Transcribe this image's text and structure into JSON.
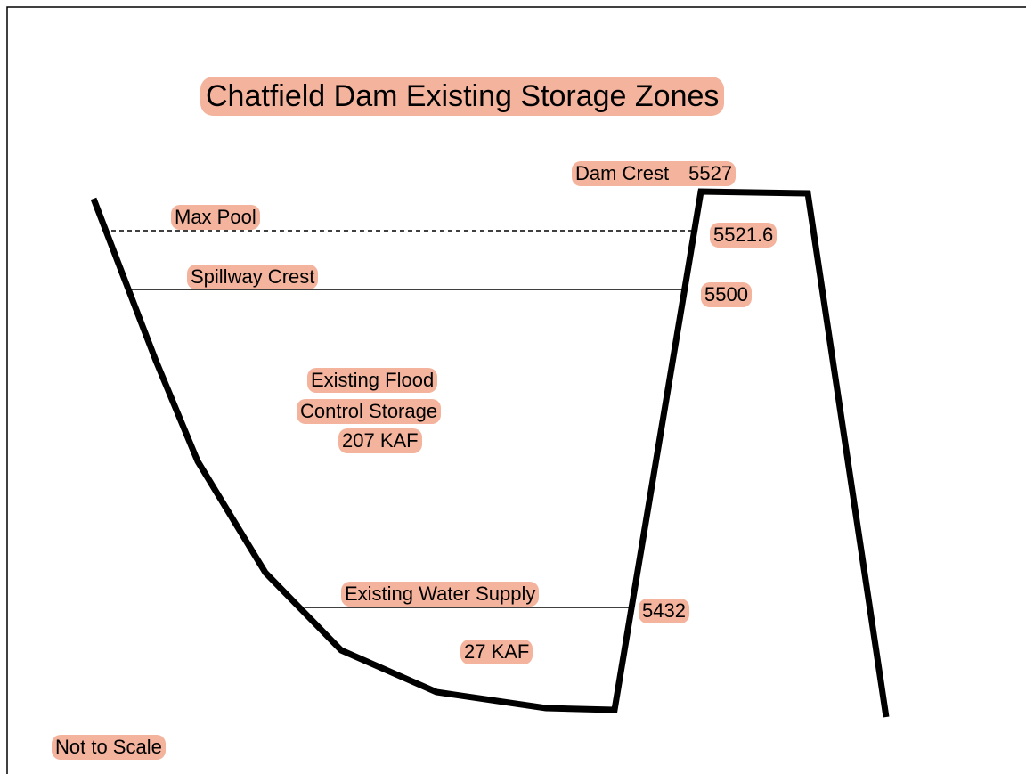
{
  "title": "Chatfield Dam Existing Storage Zones",
  "dam_crest": {
    "label": "Dam Crest",
    "elevation": 5527
  },
  "max_pool": {
    "label": "Max Pool",
    "elevation": 5521.6
  },
  "spillway_crest": {
    "label": "Spillway Crest",
    "elevation": 5500
  },
  "flood_control": {
    "lines": [
      "Existing Flood",
      "Control Storage",
      "207 KAF"
    ]
  },
  "water_supply": {
    "label": "Existing Water Supply",
    "elevation": 5432,
    "volume": "27 KAF"
  },
  "note": "Not to Scale"
}
